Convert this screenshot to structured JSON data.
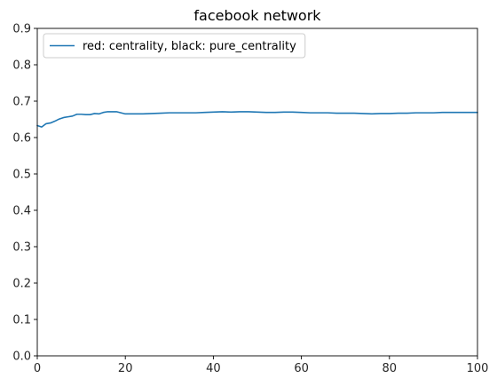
{
  "chart_data": {
    "type": "line",
    "title": "facebook network",
    "xlabel": "",
    "ylabel": "",
    "xlim": [
      0,
      100
    ],
    "ylim": [
      0,
      0.9
    ],
    "xticks": [
      0,
      20,
      40,
      60,
      80,
      100
    ],
    "yticks": [
      0.0,
      0.1,
      0.2,
      0.3,
      0.4,
      0.5,
      0.6,
      0.7,
      0.8,
      0.9
    ],
    "xtick_labels": [
      "0",
      "20",
      "40",
      "60",
      "80",
      "100"
    ],
    "ytick_labels": [
      "0.0",
      "0.1",
      "0.2",
      "0.3",
      "0.4",
      "0.5",
      "0.6",
      "0.7",
      "0.8",
      "0.9"
    ],
    "grid": false,
    "legend_position": "top-left",
    "series": [
      {
        "name": "red: centrality, black: pure_centrality",
        "color": "#1f77b4",
        "x": [
          0,
          1,
          2,
          3,
          4,
          5,
          6,
          7,
          8,
          9,
          10,
          11,
          12,
          13,
          14,
          15,
          16,
          17,
          18,
          19,
          20,
          22,
          24,
          26,
          28,
          30,
          32,
          34,
          36,
          38,
          40,
          42,
          44,
          46,
          48,
          50,
          52,
          54,
          56,
          58,
          60,
          62,
          64,
          66,
          68,
          70,
          72,
          74,
          76,
          78,
          80,
          82,
          84,
          86,
          88,
          90,
          92,
          94,
          96,
          98,
          100
        ],
        "values": [
          0.633,
          0.629,
          0.638,
          0.64,
          0.645,
          0.651,
          0.655,
          0.657,
          0.659,
          0.664,
          0.664,
          0.663,
          0.663,
          0.666,
          0.665,
          0.669,
          0.671,
          0.671,
          0.671,
          0.668,
          0.665,
          0.665,
          0.665,
          0.666,
          0.667,
          0.668,
          0.668,
          0.668,
          0.668,
          0.669,
          0.67,
          0.671,
          0.67,
          0.671,
          0.671,
          0.67,
          0.669,
          0.669,
          0.67,
          0.67,
          0.669,
          0.668,
          0.668,
          0.668,
          0.667,
          0.667,
          0.667,
          0.666,
          0.665,
          0.666,
          0.666,
          0.667,
          0.667,
          0.668,
          0.668,
          0.668,
          0.669,
          0.669,
          0.669,
          0.669,
          0.669
        ]
      }
    ]
  }
}
